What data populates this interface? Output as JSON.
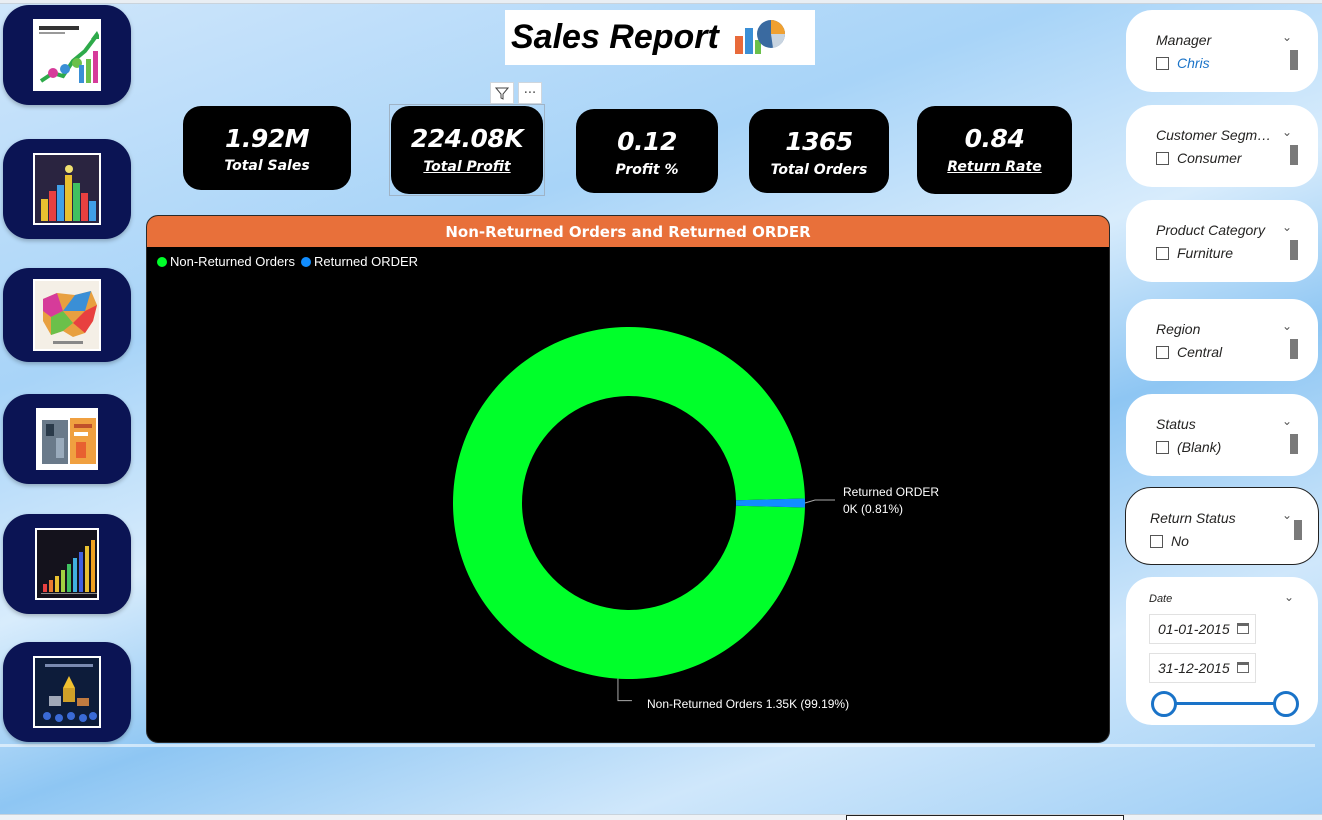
{
  "report": {
    "title": "Sales Report"
  },
  "nav": {
    "items": [
      {
        "name": "sales-profit-trend"
      },
      {
        "name": "category-analysis"
      },
      {
        "name": "region-map"
      },
      {
        "name": "return-analysis"
      },
      {
        "name": "growth-chart"
      },
      {
        "name": "top-performers"
      }
    ]
  },
  "kpis": [
    {
      "value": "1.92M",
      "label": "Total Sales"
    },
    {
      "value": "224.08K",
      "label": "Total Profit"
    },
    {
      "value": "0.12",
      "label": "Profit %"
    },
    {
      "value": "1365",
      "label": "Total Orders"
    },
    {
      "value": "0.84",
      "label": "Return Rate"
    }
  ],
  "toolbar": {
    "filter_icon": "filter-icon",
    "more_icon": "more-options-icon",
    "more_glyph": "···"
  },
  "chart_data": {
    "type": "pie",
    "title": "Non-Returned Orders and Returned ORDER",
    "legend_position": "top-left",
    "categories": [
      "Non-Returned Orders",
      "Returned ORDER"
    ],
    "values": [
      99.19,
      0.81
    ],
    "series": [
      {
        "name": "Non-Returned Orders",
        "color": "#00ff2a",
        "label": "Non-Returned Orders 1.35K (99.19%)"
      },
      {
        "name": "Returned ORDER",
        "color": "#118dff",
        "label_line1": "Returned ORDER",
        "label_line2": "0K (0.81%)"
      }
    ]
  },
  "slicers": [
    {
      "title": "Manager",
      "option": "Chris"
    },
    {
      "title": "Customer Segment",
      "option": "Consumer"
    },
    {
      "title": "Product Category",
      "option": "Furniture"
    },
    {
      "title": "Region",
      "option": "Central"
    },
    {
      "title": "Status",
      "option": "(Blank)"
    },
    {
      "title": "Return Status",
      "option": "No"
    }
  ],
  "date_slicer": {
    "title": "Date",
    "start": "01-01-2015",
    "end": "31-12-2015"
  }
}
